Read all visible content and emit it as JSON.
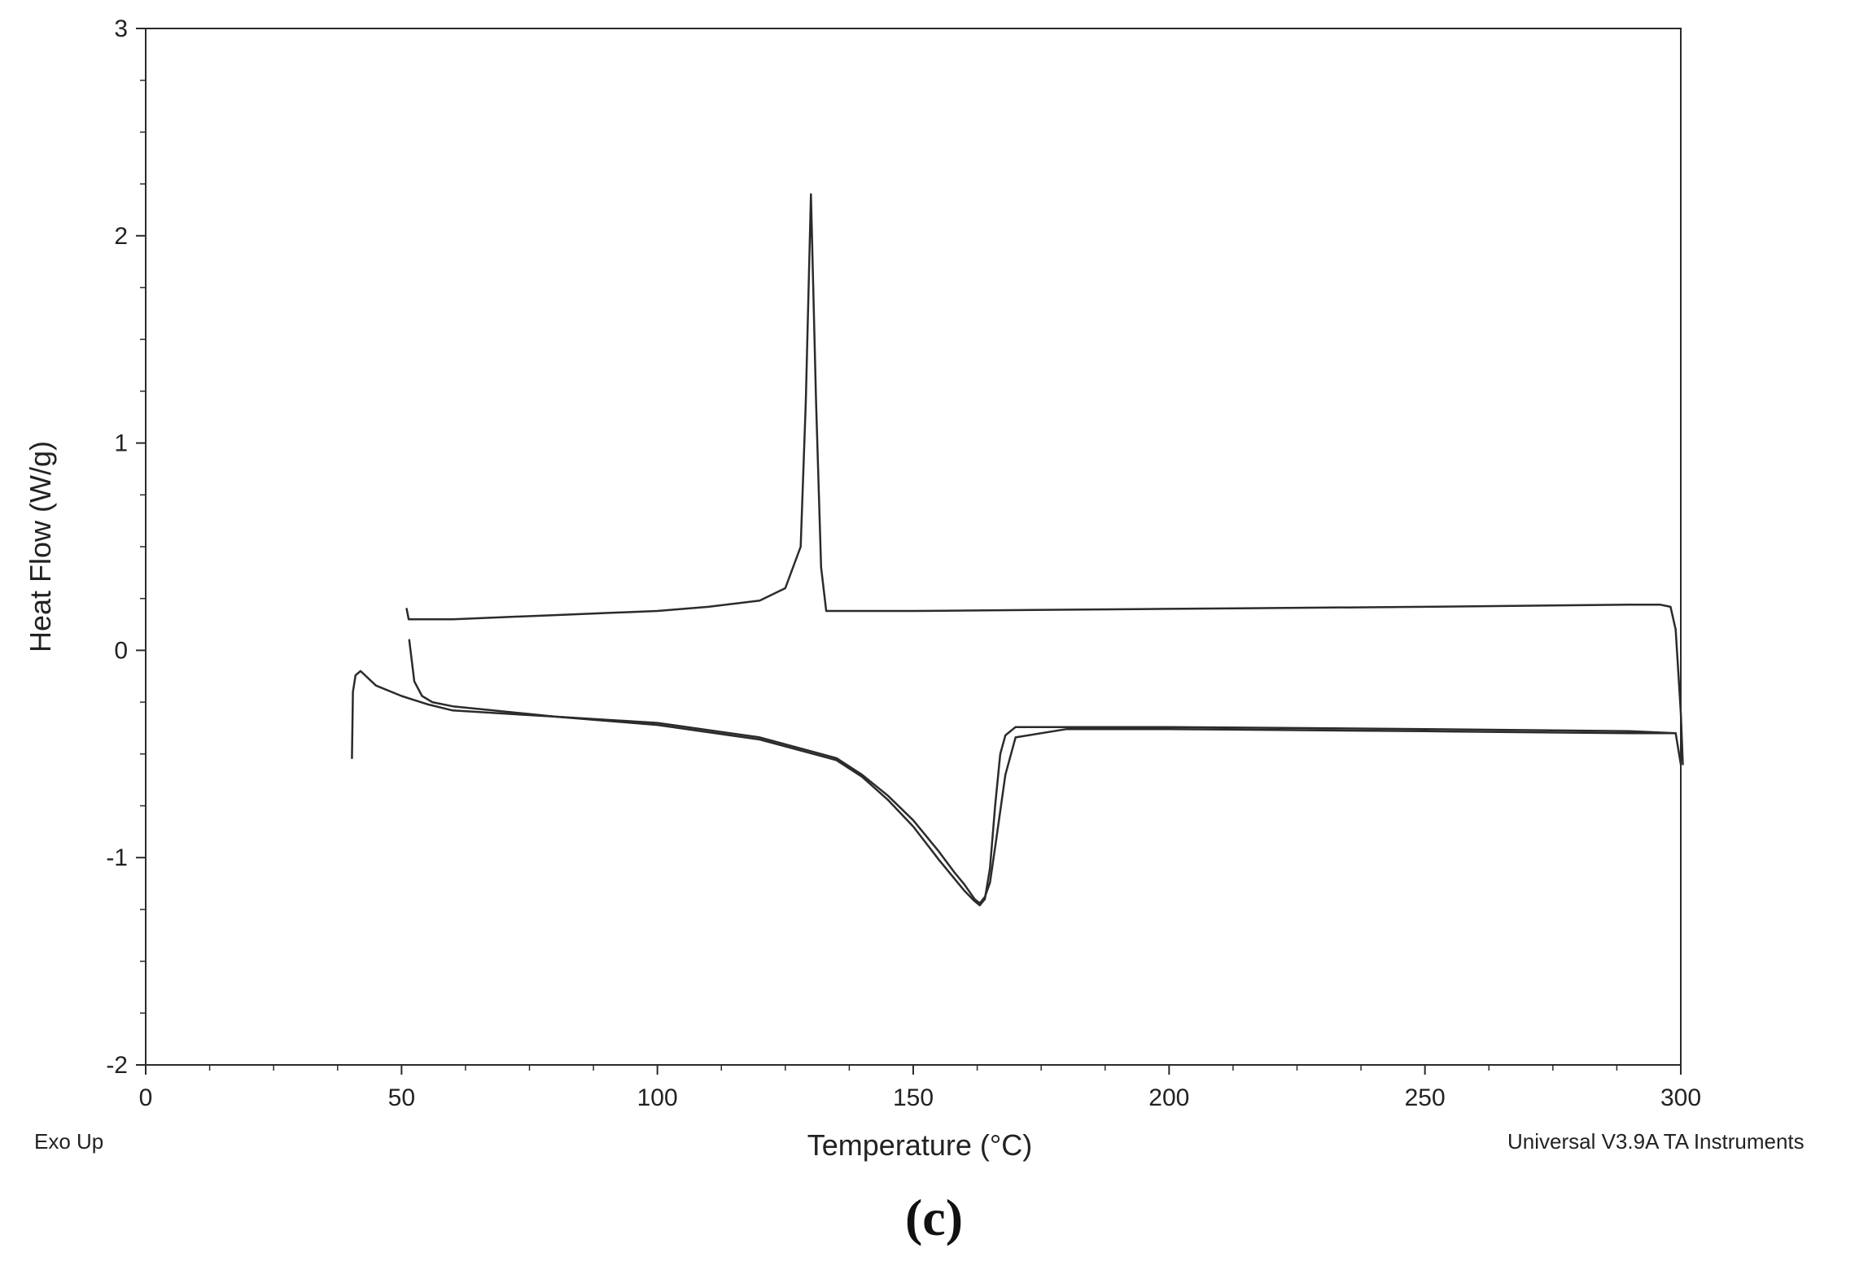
{
  "chart_data": {
    "type": "line",
    "title": "",
    "xlabel": "Temperature (°C)",
    "ylabel": "Heat Flow (W/g)",
    "xlim": [
      0,
      300
    ],
    "ylim": [
      -2,
      3
    ],
    "xticks": [
      0,
      50,
      100,
      150,
      200,
      250,
      300
    ],
    "yticks": [
      -2,
      -1,
      0,
      1,
      2,
      3
    ],
    "grid": false,
    "legend": "none",
    "line_color": "#2b2b2b",
    "series": [
      {
        "x": [
          51,
          51.4,
          52,
          53,
          55,
          60,
          70,
          80,
          90,
          100,
          110,
          120,
          125,
          128,
          129,
          130,
          131,
          132,
          133,
          135,
          150,
          200,
          250,
          290,
          296,
          298,
          299,
          300,
          300.4
        ],
        "y": [
          0.2,
          0.15,
          0.15,
          0.15,
          0.15,
          0.15,
          0.16,
          0.17,
          0.18,
          0.19,
          0.21,
          0.24,
          0.3,
          0.5,
          1.2,
          2.2,
          1.2,
          0.4,
          0.19,
          0.19,
          0.19,
          0.2,
          0.21,
          0.22,
          0.22,
          0.21,
          0.1,
          -0.3,
          -0.55
        ]
      },
      {
        "x": [
          40.3,
          40.5,
          41,
          42,
          45,
          50,
          55,
          60,
          80,
          100,
          120,
          135,
          140,
          145,
          150,
          155,
          158,
          160,
          162,
          163,
          164,
          165,
          166,
          167,
          168,
          170,
          180,
          200,
          250,
          290,
          299,
          300
        ],
        "y": [
          -0.52,
          -0.2,
          -0.12,
          -0.1,
          -0.17,
          -0.22,
          -0.26,
          -0.29,
          -0.32,
          -0.36,
          -0.43,
          -0.53,
          -0.61,
          -0.72,
          -0.85,
          -1.01,
          -1.1,
          -1.16,
          -1.21,
          -1.23,
          -1.2,
          -1.05,
          -0.75,
          -0.5,
          -0.41,
          -0.37,
          -0.37,
          -0.37,
          -0.38,
          -0.39,
          -0.4,
          -0.55
        ]
      },
      {
        "x": [
          51.5,
          52.5,
          54,
          56,
          60,
          80,
          100,
          120,
          135,
          140,
          145,
          150,
          155,
          158,
          160,
          162,
          163,
          164,
          165,
          166,
          168,
          170,
          180,
          200,
          250,
          290,
          299
        ],
        "y": [
          0.05,
          -0.15,
          -0.22,
          -0.25,
          -0.27,
          -0.32,
          -0.35,
          -0.42,
          -0.52,
          -0.6,
          -0.7,
          -0.82,
          -0.97,
          -1.07,
          -1.13,
          -1.2,
          -1.22,
          -1.19,
          -1.12,
          -0.95,
          -0.6,
          -0.42,
          -0.38,
          -0.38,
          -0.39,
          -0.4,
          -0.4
        ]
      }
    ]
  },
  "notes": {
    "exo": "Exo Up",
    "software": "Universal V3.9A TA Instruments"
  },
  "panel_label": "(c)"
}
